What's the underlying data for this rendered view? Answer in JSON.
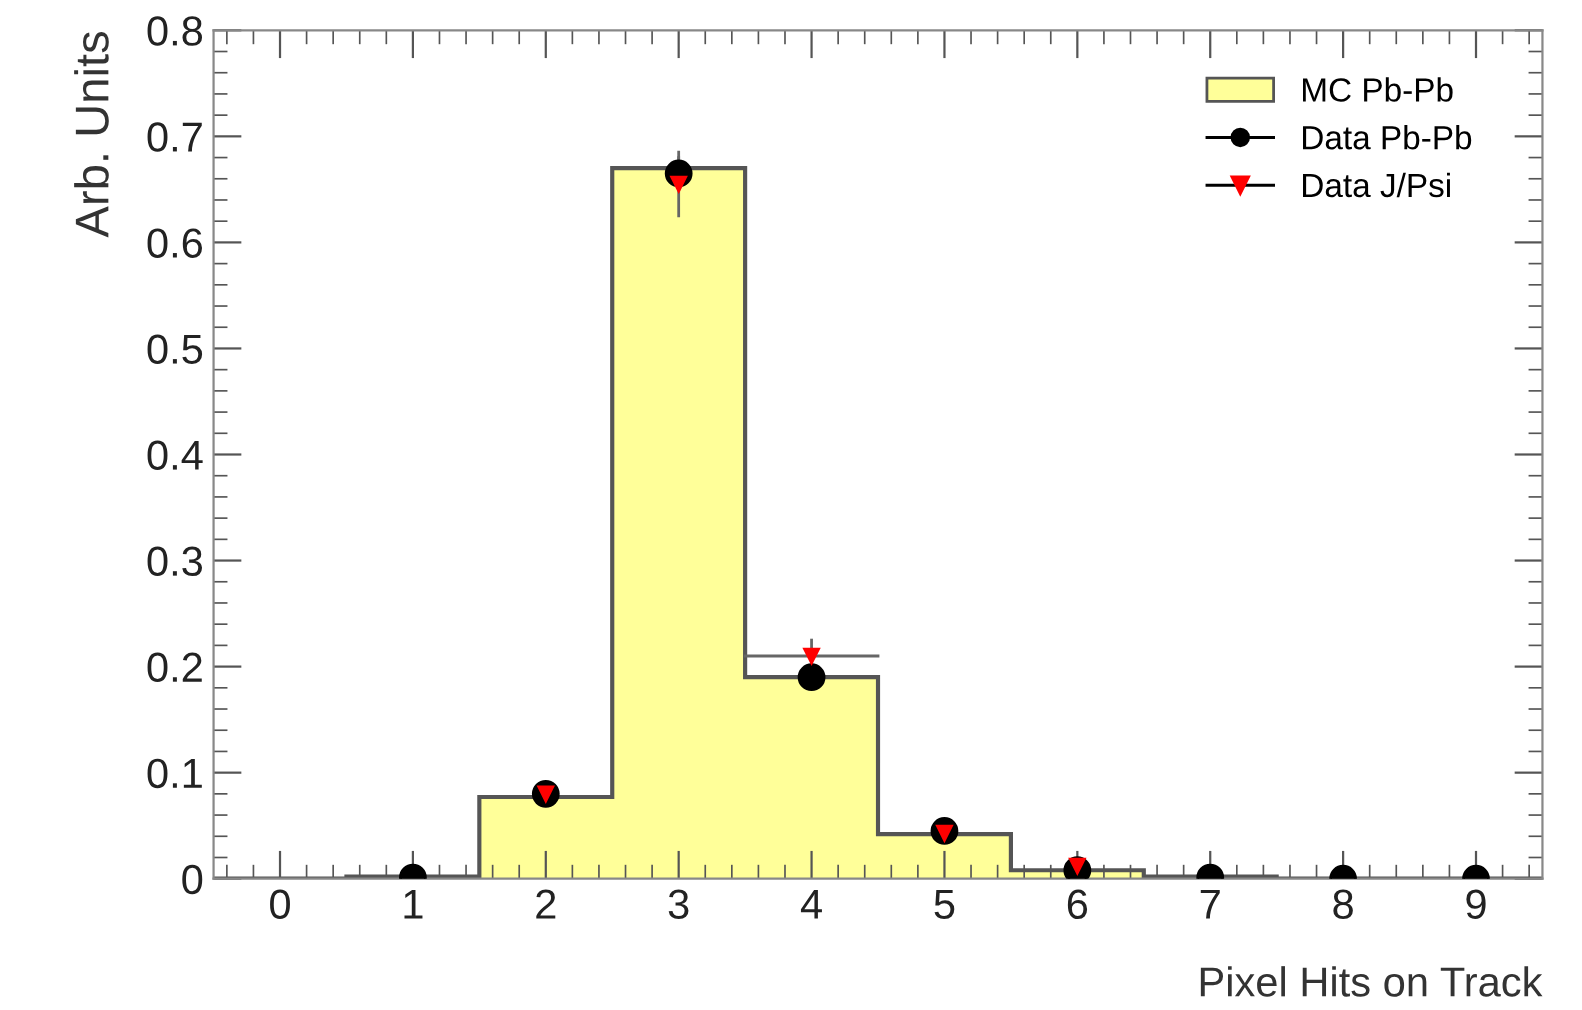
{
  "chart_data": {
    "type": "histogram",
    "xlabel": "Pixel Hits on Track",
    "ylabel": "Arb. Units",
    "xlim": [
      -0.5,
      9.5
    ],
    "ylim": [
      0,
      0.8
    ],
    "xticks": [
      0,
      1,
      2,
      3,
      4,
      5,
      6,
      7,
      8,
      9
    ],
    "yticks": [
      0,
      0.1,
      0.2,
      0.3,
      0.4,
      0.5,
      0.6,
      0.7,
      0.8
    ],
    "grid": false,
    "legend": "top right",
    "series": [
      {
        "type": "histogram",
        "name": "MC Pb-Pb",
        "color": "#ffff99",
        "bins": [
          -0.5,
          0.5,
          1.5,
          2.5,
          3.5,
          4.5,
          5.5,
          6.5,
          7.5,
          8.5,
          9.5
        ],
        "values": [
          0,
          0.002,
          0.077,
          0.67,
          0.19,
          0.042,
          0.008,
          0.002,
          0,
          0
        ]
      },
      {
        "type": "scatter",
        "name": "Data Pb-Pb",
        "color": "#000000",
        "marker": "circle",
        "x": [
          1,
          2,
          3,
          4,
          5,
          6,
          7,
          8,
          9
        ],
        "values": [
          0.001,
          0.08,
          0.665,
          0.19,
          0.045,
          0.008,
          0.001,
          0,
          0
        ],
        "errors": [
          null,
          null,
          0.015,
          null,
          null,
          null,
          null,
          null,
          null
        ]
      },
      {
        "type": "scatter",
        "name": "Data J/Psi",
        "color": "#ff0000",
        "marker": "triangle",
        "x": [
          2,
          3,
          4,
          5,
          6
        ],
        "values": [
          0.08,
          0.655,
          0.21,
          0.043,
          0.012
        ],
        "errors": [
          null,
          0.03,
          0.015,
          null,
          0.005
        ],
        "xerrors": [
          null,
          null,
          0.5,
          null,
          null
        ]
      }
    ]
  }
}
